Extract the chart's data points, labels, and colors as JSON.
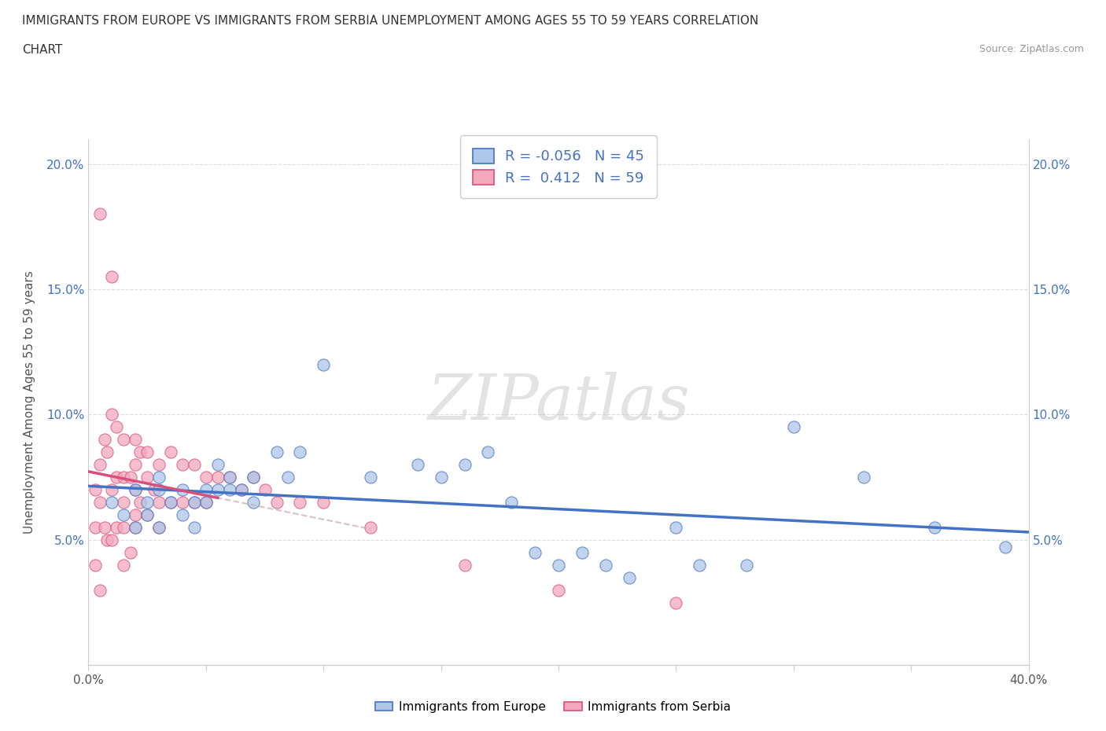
{
  "title_line1": "IMMIGRANTS FROM EUROPE VS IMMIGRANTS FROM SERBIA UNEMPLOYMENT AMONG AGES 55 TO 59 YEARS CORRELATION",
  "title_line2": "CHART",
  "source": "Source: ZipAtlas.com",
  "ylabel": "Unemployment Among Ages 55 to 59 years",
  "xlim": [
    0.0,
    0.4
  ],
  "ylim": [
    0.0,
    0.21
  ],
  "x_ticks": [
    0.0,
    0.05,
    0.1,
    0.15,
    0.2,
    0.25,
    0.3,
    0.35,
    0.4
  ],
  "x_tick_labels": [
    "0.0%",
    "",
    "",
    "",
    "",
    "",
    "",
    "",
    "40.0%"
  ],
  "y_ticks": [
    0.0,
    0.05,
    0.1,
    0.15,
    0.2
  ],
  "y_tick_labels": [
    "",
    "5.0%",
    "10.0%",
    "15.0%",
    "20.0%"
  ],
  "europe_R": -0.056,
  "europe_N": 45,
  "serbia_R": 0.412,
  "serbia_N": 59,
  "europe_color": "#aec6e8",
  "serbia_color": "#f4a8bb",
  "europe_line_color": "#4472c4",
  "serbia_line_color": "#d94f7a",
  "watermark_text": "ZIPatlas",
  "legend_europe_label": "Immigrants from Europe",
  "legend_serbia_label": "Immigrants from Serbia",
  "europe_scatter_x": [
    0.01,
    0.015,
    0.02,
    0.02,
    0.025,
    0.025,
    0.03,
    0.03,
    0.03,
    0.035,
    0.04,
    0.04,
    0.045,
    0.045,
    0.05,
    0.05,
    0.055,
    0.055,
    0.06,
    0.06,
    0.065,
    0.07,
    0.07,
    0.08,
    0.085,
    0.09,
    0.1,
    0.12,
    0.14,
    0.15,
    0.16,
    0.17,
    0.18,
    0.19,
    0.2,
    0.21,
    0.22,
    0.23,
    0.25,
    0.26,
    0.28,
    0.3,
    0.33,
    0.36,
    0.39
  ],
  "europe_scatter_y": [
    0.065,
    0.06,
    0.07,
    0.055,
    0.065,
    0.06,
    0.075,
    0.07,
    0.055,
    0.065,
    0.07,
    0.06,
    0.065,
    0.055,
    0.07,
    0.065,
    0.08,
    0.07,
    0.075,
    0.07,
    0.07,
    0.075,
    0.065,
    0.085,
    0.075,
    0.085,
    0.12,
    0.075,
    0.08,
    0.075,
    0.08,
    0.085,
    0.065,
    0.045,
    0.04,
    0.045,
    0.04,
    0.035,
    0.055,
    0.04,
    0.04,
    0.095,
    0.075,
    0.055,
    0.047
  ],
  "serbia_scatter_x": [
    0.003,
    0.003,
    0.003,
    0.005,
    0.005,
    0.005,
    0.005,
    0.007,
    0.007,
    0.008,
    0.008,
    0.01,
    0.01,
    0.01,
    0.01,
    0.012,
    0.012,
    0.012,
    0.015,
    0.015,
    0.015,
    0.015,
    0.015,
    0.018,
    0.018,
    0.02,
    0.02,
    0.02,
    0.02,
    0.02,
    0.022,
    0.022,
    0.025,
    0.025,
    0.025,
    0.028,
    0.03,
    0.03,
    0.03,
    0.035,
    0.035,
    0.04,
    0.04,
    0.045,
    0.045,
    0.05,
    0.05,
    0.055,
    0.06,
    0.065,
    0.07,
    0.075,
    0.08,
    0.09,
    0.1,
    0.12,
    0.16,
    0.2,
    0.25
  ],
  "serbia_scatter_y": [
    0.07,
    0.055,
    0.04,
    0.18,
    0.08,
    0.065,
    0.03,
    0.09,
    0.055,
    0.085,
    0.05,
    0.155,
    0.1,
    0.07,
    0.05,
    0.095,
    0.075,
    0.055,
    0.09,
    0.075,
    0.065,
    0.055,
    0.04,
    0.075,
    0.045,
    0.09,
    0.08,
    0.07,
    0.06,
    0.055,
    0.085,
    0.065,
    0.085,
    0.075,
    0.06,
    0.07,
    0.08,
    0.065,
    0.055,
    0.085,
    0.065,
    0.08,
    0.065,
    0.08,
    0.065,
    0.075,
    0.065,
    0.075,
    0.075,
    0.07,
    0.075,
    0.07,
    0.065,
    0.065,
    0.065,
    0.055,
    0.04,
    0.03,
    0.025
  ]
}
